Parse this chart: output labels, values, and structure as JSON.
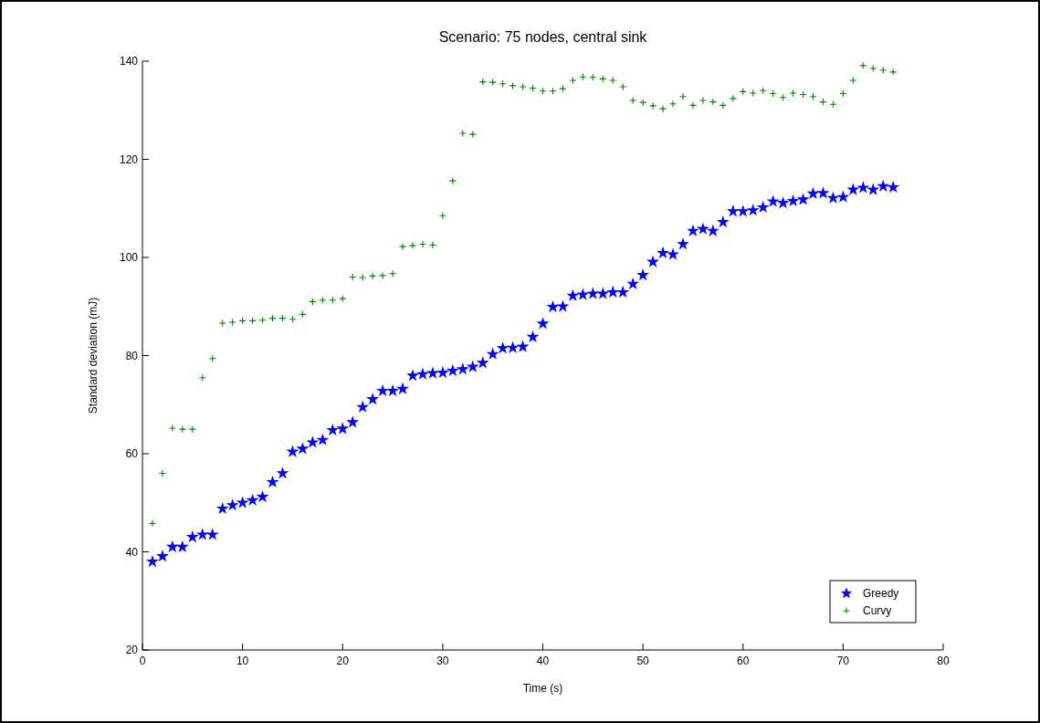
{
  "chart_data": {
    "type": "scatter",
    "title": "Scenario: 75 nodes, central sink",
    "xlabel": "Time (s)",
    "ylabel": "Standard deviation (mJ)",
    "x": [
      1,
      2,
      3,
      4,
      5,
      6,
      7,
      8,
      9,
      10,
      11,
      12,
      13,
      14,
      15,
      16,
      17,
      18,
      19,
      20,
      21,
      22,
      23,
      24,
      25,
      26,
      27,
      28,
      29,
      30,
      31,
      32,
      33,
      34,
      35,
      36,
      37,
      38,
      39,
      40,
      41,
      42,
      43,
      44,
      45,
      46,
      47,
      48,
      49,
      50,
      51,
      52,
      53,
      54,
      55,
      56,
      57,
      58,
      59,
      60,
      61,
      62,
      63,
      64,
      65,
      66,
      67,
      68,
      69,
      70,
      71,
      72,
      73,
      74,
      75
    ],
    "series": [
      {
        "name": "Greedy",
        "color": "#0000ff",
        "marker": "star",
        "values": [
          38.0,
          39.1,
          41.0,
          41.0,
          43.0,
          43.5,
          43.5,
          48.8,
          49.5,
          50.0,
          50.5,
          51.2,
          54.2,
          56.0,
          60.4,
          61.0,
          62.3,
          62.8,
          64.8,
          65.1,
          66.4,
          69.5,
          71.1,
          72.8,
          72.8,
          73.2,
          75.9,
          76.2,
          76.4,
          76.5,
          76.9,
          77.2,
          77.7,
          78.5,
          80.3,
          81.5,
          81.6,
          81.8,
          83.8,
          86.5,
          89.9,
          90.0,
          92.2,
          92.4,
          92.6,
          92.6,
          92.9,
          92.9,
          94.6,
          96.4,
          99.1,
          100.9,
          100.6,
          102.7,
          105.4,
          105.8,
          105.4,
          107.2,
          109.4,
          109.4,
          109.6,
          110.2,
          111.4,
          111.1,
          111.5,
          111.8,
          113.0,
          113.1,
          112.1,
          112.3,
          113.8,
          114.2,
          113.8,
          114.5,
          114.3
        ]
      },
      {
        "name": "Curvy",
        "color": "#008000",
        "marker": "cross",
        "values": [
          45.8,
          56.0,
          65.2,
          65.0,
          65.0,
          75.5,
          79.4,
          86.6,
          86.8,
          87.1,
          87.1,
          87.2,
          87.6,
          87.6,
          87.4,
          88.4,
          91.0,
          91.3,
          91.3,
          91.6,
          96.0,
          95.9,
          96.2,
          96.3,
          96.7,
          102.2,
          102.4,
          102.7,
          102.5,
          108.5,
          115.6,
          125.3,
          125.1,
          135.8,
          135.7,
          135.4,
          135.0,
          134.8,
          134.5,
          133.9,
          133.9,
          134.4,
          136.1,
          136.8,
          136.7,
          136.4,
          136.1,
          134.8,
          132.0,
          131.6,
          130.9,
          130.3,
          131.3,
          132.8,
          131.0,
          132.0,
          131.7,
          131.0,
          132.4,
          133.8,
          133.5,
          134.0,
          133.4,
          132.6,
          133.5,
          133.2,
          132.8,
          131.7,
          131.2,
          133.4,
          136.1,
          139.1,
          138.5,
          138.2,
          137.8
        ]
      }
    ],
    "xlim": [
      0,
      80
    ],
    "xticks": [
      0,
      10,
      20,
      30,
      40,
      50,
      60,
      70,
      80
    ],
    "ylim": [
      20,
      140
    ],
    "yticks": [
      20,
      40,
      60,
      80,
      100,
      120,
      140
    ],
    "grid": false,
    "legend": "bottom right"
  }
}
